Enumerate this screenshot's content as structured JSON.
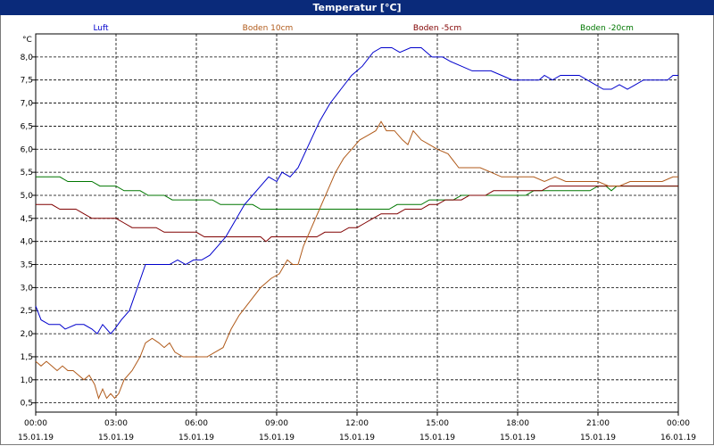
{
  "window": {
    "title": "Temperatur [°C]"
  },
  "chart_data": {
    "type": "line",
    "title": "Temperatur [°C]",
    "ylabel": "°C",
    "xlabel": "",
    "ylim": [
      0.3,
      8.5
    ],
    "xlim_hours": [
      0,
      24
    ],
    "grid": true,
    "legend_position": "top",
    "y_ticks": [
      "0,5",
      "1,0",
      "1,5",
      "2,0",
      "2,5",
      "3,0",
      "3,5",
      "4,0",
      "4,5",
      "5,0",
      "5,5",
      "6,0",
      "6,5",
      "7,0",
      "7,5",
      "8,0"
    ],
    "x_ticks": [
      {
        "time": "00:00",
        "date": "15.01.19",
        "h": 0
      },
      {
        "time": "03:00",
        "date": "15.01.19",
        "h": 3
      },
      {
        "time": "06:00",
        "date": "15.01.19",
        "h": 6
      },
      {
        "time": "09:00",
        "date": "15.01.19",
        "h": 9
      },
      {
        "time": "12:00",
        "date": "15.01.19",
        "h": 12
      },
      {
        "time": "15:00",
        "date": "15.01.19",
        "h": 15
      },
      {
        "time": "18:00",
        "date": "15.01.19",
        "h": 18
      },
      {
        "time": "21:00",
        "date": "15.01.19",
        "h": 21
      },
      {
        "time": "00:00",
        "date": "16.01.19",
        "h": 24
      }
    ],
    "series": [
      {
        "name": "Luft",
        "color": "#0000cc",
        "points": [
          [
            0,
            2.6
          ],
          [
            0.2,
            2.3
          ],
          [
            0.5,
            2.2
          ],
          [
            0.9,
            2.2
          ],
          [
            1.1,
            2.1
          ],
          [
            1.5,
            2.2
          ],
          [
            1.8,
            2.2
          ],
          [
            2.1,
            2.1
          ],
          [
            2.3,
            2.0
          ],
          [
            2.5,
            2.2
          ],
          [
            2.8,
            2.0
          ],
          [
            2.95,
            2.1
          ],
          [
            3.2,
            2.3
          ],
          [
            3.5,
            2.5
          ],
          [
            3.8,
            3.0
          ],
          [
            4.1,
            3.5
          ],
          [
            4.5,
            3.5
          ],
          [
            4.8,
            3.5
          ],
          [
            5.0,
            3.5
          ],
          [
            5.3,
            3.6
          ],
          [
            5.6,
            3.5
          ],
          [
            5.9,
            3.6
          ],
          [
            6.2,
            3.6
          ],
          [
            6.5,
            3.7
          ],
          [
            6.8,
            3.9
          ],
          [
            7.1,
            4.1
          ],
          [
            7.4,
            4.4
          ],
          [
            7.8,
            4.8
          ],
          [
            8.1,
            5.0
          ],
          [
            8.4,
            5.2
          ],
          [
            8.7,
            5.4
          ],
          [
            9.0,
            5.3
          ],
          [
            9.2,
            5.5
          ],
          [
            9.5,
            5.4
          ],
          [
            9.8,
            5.6
          ],
          [
            10.2,
            6.1
          ],
          [
            10.6,
            6.6
          ],
          [
            11.0,
            7.0
          ],
          [
            11.4,
            7.3
          ],
          [
            11.8,
            7.6
          ],
          [
            12.2,
            7.8
          ],
          [
            12.6,
            8.1
          ],
          [
            12.9,
            8.2
          ],
          [
            13.3,
            8.2
          ],
          [
            13.6,
            8.1
          ],
          [
            14.0,
            8.2
          ],
          [
            14.4,
            8.2
          ],
          [
            14.8,
            8.0
          ],
          [
            15.2,
            8.0
          ],
          [
            15.5,
            7.9
          ],
          [
            15.9,
            7.8
          ],
          [
            16.3,
            7.7
          ],
          [
            16.6,
            7.7
          ],
          [
            17.0,
            7.7
          ],
          [
            17.4,
            7.6
          ],
          [
            17.8,
            7.5
          ],
          [
            18.2,
            7.5
          ],
          [
            18.6,
            7.5
          ],
          [
            18.8,
            7.5
          ],
          [
            19.0,
            7.6
          ],
          [
            19.3,
            7.5
          ],
          [
            19.6,
            7.6
          ],
          [
            20.0,
            7.6
          ],
          [
            20.3,
            7.6
          ],
          [
            20.6,
            7.5
          ],
          [
            20.9,
            7.4
          ],
          [
            21.2,
            7.3
          ],
          [
            21.5,
            7.3
          ],
          [
            21.8,
            7.4
          ],
          [
            22.1,
            7.3
          ],
          [
            22.4,
            7.4
          ],
          [
            22.7,
            7.5
          ],
          [
            23.0,
            7.5
          ],
          [
            23.3,
            7.5
          ],
          [
            23.6,
            7.5
          ],
          [
            23.8,
            7.6
          ],
          [
            24.0,
            7.6
          ]
        ]
      },
      {
        "name": "Boden 10cm",
        "color": "#b05a1a",
        "points": [
          [
            0,
            1.4
          ],
          [
            0.2,
            1.3
          ],
          [
            0.4,
            1.4
          ],
          [
            0.6,
            1.3
          ],
          [
            0.8,
            1.2
          ],
          [
            1.0,
            1.3
          ],
          [
            1.2,
            1.2
          ],
          [
            1.4,
            1.2
          ],
          [
            1.6,
            1.1
          ],
          [
            1.8,
            1.0
          ],
          [
            2.0,
            1.1
          ],
          [
            2.2,
            0.9
          ],
          [
            2.35,
            0.6
          ],
          [
            2.5,
            0.8
          ],
          [
            2.65,
            0.6
          ],
          [
            2.8,
            0.7
          ],
          [
            2.95,
            0.6
          ],
          [
            3.1,
            0.7
          ],
          [
            3.3,
            1.0
          ],
          [
            3.6,
            1.2
          ],
          [
            3.9,
            1.5
          ],
          [
            4.1,
            1.8
          ],
          [
            4.35,
            1.9
          ],
          [
            4.6,
            1.8
          ],
          [
            4.8,
            1.7
          ],
          [
            5.0,
            1.8
          ],
          [
            5.2,
            1.6
          ],
          [
            5.5,
            1.5
          ],
          [
            5.8,
            1.5
          ],
          [
            6.1,
            1.5
          ],
          [
            6.4,
            1.5
          ],
          [
            6.7,
            1.6
          ],
          [
            7.0,
            1.7
          ],
          [
            7.3,
            2.1
          ],
          [
            7.6,
            2.4
          ],
          [
            8.0,
            2.7
          ],
          [
            8.4,
            3.0
          ],
          [
            8.8,
            3.2
          ],
          [
            9.1,
            3.3
          ],
          [
            9.4,
            3.6
          ],
          [
            9.6,
            3.5
          ],
          [
            9.8,
            3.5
          ],
          [
            10.0,
            3.9
          ],
          [
            10.3,
            4.3
          ],
          [
            10.6,
            4.7
          ],
          [
            10.9,
            5.1
          ],
          [
            11.2,
            5.5
          ],
          [
            11.5,
            5.8
          ],
          [
            11.8,
            6.0
          ],
          [
            12.1,
            6.2
          ],
          [
            12.4,
            6.3
          ],
          [
            12.7,
            6.4
          ],
          [
            12.9,
            6.6
          ],
          [
            13.1,
            6.4
          ],
          [
            13.4,
            6.4
          ],
          [
            13.7,
            6.2
          ],
          [
            13.9,
            6.1
          ],
          [
            14.1,
            6.4
          ],
          [
            14.4,
            6.2
          ],
          [
            14.7,
            6.1
          ],
          [
            15.0,
            6.0
          ],
          [
            15.4,
            5.9
          ],
          [
            15.8,
            5.6
          ],
          [
            16.2,
            5.6
          ],
          [
            16.6,
            5.6
          ],
          [
            17.0,
            5.5
          ],
          [
            17.4,
            5.4
          ],
          [
            17.8,
            5.4
          ],
          [
            18.2,
            5.4
          ],
          [
            18.6,
            5.4
          ],
          [
            19.0,
            5.3
          ],
          [
            19.4,
            5.4
          ],
          [
            19.8,
            5.3
          ],
          [
            20.2,
            5.3
          ],
          [
            20.6,
            5.3
          ],
          [
            21.0,
            5.3
          ],
          [
            21.4,
            5.2
          ],
          [
            21.8,
            5.2
          ],
          [
            22.2,
            5.3
          ],
          [
            22.6,
            5.3
          ],
          [
            23.0,
            5.3
          ],
          [
            23.4,
            5.3
          ],
          [
            23.8,
            5.4
          ],
          [
            24.0,
            5.4
          ]
        ]
      },
      {
        "name": "Boden -5cm",
        "color": "#800000",
        "points": [
          [
            0,
            4.8
          ],
          [
            0.6,
            4.8
          ],
          [
            0.9,
            4.7
          ],
          [
            1.5,
            4.7
          ],
          [
            1.8,
            4.6
          ],
          [
            2.1,
            4.5
          ],
          [
            2.4,
            4.5
          ],
          [
            3.0,
            4.5
          ],
          [
            3.3,
            4.4
          ],
          [
            3.6,
            4.3
          ],
          [
            4.5,
            4.3
          ],
          [
            4.8,
            4.2
          ],
          [
            6.0,
            4.2
          ],
          [
            6.3,
            4.1
          ],
          [
            8.4,
            4.1
          ],
          [
            8.6,
            4.0
          ],
          [
            8.8,
            4.1
          ],
          [
            10.5,
            4.1
          ],
          [
            10.8,
            4.2
          ],
          [
            11.4,
            4.2
          ],
          [
            11.7,
            4.3
          ],
          [
            12.0,
            4.3
          ],
          [
            12.3,
            4.4
          ],
          [
            12.6,
            4.5
          ],
          [
            12.9,
            4.6
          ],
          [
            13.5,
            4.6
          ],
          [
            13.8,
            4.7
          ],
          [
            14.4,
            4.7
          ],
          [
            14.7,
            4.8
          ],
          [
            15.0,
            4.8
          ],
          [
            15.3,
            4.9
          ],
          [
            15.9,
            4.9
          ],
          [
            16.2,
            5.0
          ],
          [
            16.8,
            5.0
          ],
          [
            17.1,
            5.1
          ],
          [
            18.9,
            5.1
          ],
          [
            19.2,
            5.2
          ],
          [
            24.0,
            5.2
          ]
        ]
      },
      {
        "name": "Boden -20cm",
        "color": "#007700",
        "points": [
          [
            0,
            5.4
          ],
          [
            0.9,
            5.4
          ],
          [
            1.2,
            5.3
          ],
          [
            2.1,
            5.3
          ],
          [
            2.4,
            5.2
          ],
          [
            3.0,
            5.2
          ],
          [
            3.3,
            5.1
          ],
          [
            3.9,
            5.1
          ],
          [
            4.2,
            5.0
          ],
          [
            4.8,
            5.0
          ],
          [
            5.1,
            4.9
          ],
          [
            6.6,
            4.9
          ],
          [
            6.9,
            4.8
          ],
          [
            8.1,
            4.8
          ],
          [
            8.4,
            4.7
          ],
          [
            13.2,
            4.7
          ],
          [
            13.5,
            4.8
          ],
          [
            14.4,
            4.8
          ],
          [
            14.7,
            4.9
          ],
          [
            15.6,
            4.9
          ],
          [
            15.9,
            5.0
          ],
          [
            18.3,
            5.0
          ],
          [
            18.6,
            5.1
          ],
          [
            20.7,
            5.1
          ],
          [
            21.0,
            5.2
          ],
          [
            21.3,
            5.2
          ],
          [
            21.5,
            5.1
          ],
          [
            21.7,
            5.2
          ],
          [
            24.0,
            5.2
          ]
        ]
      }
    ]
  }
}
